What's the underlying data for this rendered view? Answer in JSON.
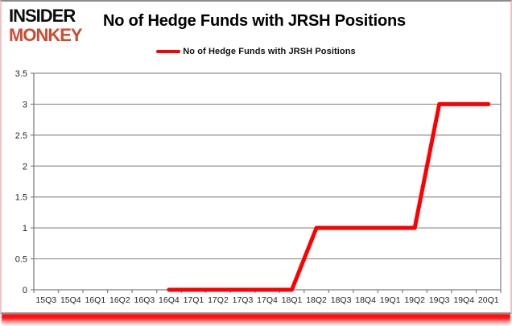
{
  "header": {
    "logo_line1": "INSIDER",
    "logo_line2": "MONKEY",
    "title": "No of Hedge Funds with JRSH Positions"
  },
  "legend": {
    "label": "No of Hedge Funds with JRSH Positions",
    "swatch_color": "#ff0000"
  },
  "colors": {
    "series_red": "#ff0000",
    "logo_red": "#cf4a31",
    "gridline": "#8f8f8f",
    "axis": "#808080",
    "tick_label": "#262626",
    "bottom_glow": "#ff0000"
  },
  "chart_data": {
    "type": "line",
    "title": "No of Hedge Funds with JRSH Positions",
    "categories": [
      "15Q3",
      "15Q4",
      "16Q1",
      "16Q2",
      "16Q3",
      "16Q4",
      "17Q1",
      "17Q2",
      "17Q3",
      "17Q4",
      "18Q1",
      "18Q2",
      "18Q3",
      "18Q4",
      "19Q1",
      "19Q2",
      "19Q3",
      "19Q4",
      "20Q1"
    ],
    "series": [
      {
        "name": "No of Hedge Funds with JRSH Positions",
        "color": "#ff0000",
        "values": [
          null,
          null,
          null,
          null,
          null,
          0,
          0,
          0,
          0,
          0,
          0,
          1,
          1,
          1,
          1,
          1,
          3,
          3,
          3
        ]
      }
    ],
    "xlabel": "",
    "ylabel": "",
    "ylim": [
      0,
      3.5
    ],
    "yticks": [
      0,
      0.5,
      1,
      1.5,
      2,
      2.5,
      3,
      3.5
    ],
    "grid": true,
    "legend_position": "top-center"
  }
}
